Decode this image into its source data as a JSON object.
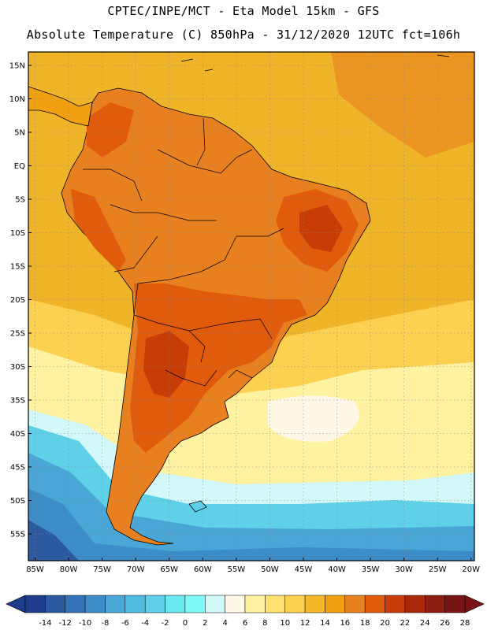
{
  "header": {
    "line1": "CPTEC/INPE/MCT -  Eta Model 15km - GFS",
    "line2": "Absolute Temperature (C) 850hPa - 31/12/2020 12UTC fct=106h"
  },
  "axes": {
    "lat_labels": [
      "15N",
      "10N",
      "5N",
      "EQ",
      "5S",
      "10S",
      "15S",
      "20S",
      "25S",
      "30S",
      "35S",
      "40S",
      "45S",
      "50S",
      "55S"
    ],
    "lon_labels": [
      "85W",
      "80W",
      "75W",
      "70W",
      "65W",
      "60W",
      "55W",
      "50W",
      "45W",
      "40W",
      "35W",
      "30W",
      "25W",
      "20W"
    ]
  },
  "colorbar": {
    "labels": [
      "-14",
      "-12",
      "-10",
      "-8",
      "-6",
      "-4",
      "-2",
      "0",
      "2",
      "4",
      "6",
      "8",
      "10",
      "12",
      "14",
      "16",
      "18",
      "20",
      "22",
      "24",
      "26",
      "28"
    ],
    "colors": [
      "#1e3c8c",
      "#2c5aa0",
      "#3272b4",
      "#3c8cc8",
      "#4aa6d6",
      "#52bce0",
      "#5ed0e8",
      "#6ae8f0",
      "#7ff8f8",
      "#d2f8fa",
      "#fff8e6",
      "#fff2a0",
      "#ffe070",
      "#fcd050",
      "#f4b828",
      "#f0a010",
      "#e88020",
      "#e05c0c",
      "#c83c08",
      "#a82808",
      "#8c1c10",
      "#781414"
    ],
    "min_color": "#1e3c8c",
    "max_color": "#781414"
  },
  "palette": {
    "ocean_warm": "#f0b428",
    "ocean_mid": "#fcd050",
    "ocean_light": "#fff2a0",
    "ocean_cold": "#5ed0e8",
    "ocean_deep": "#3c8cc8",
    "land_hot": "#e05c0c",
    "land_hottest": "#c83c08",
    "land_warm": "#e88020",
    "border": "#000000"
  }
}
